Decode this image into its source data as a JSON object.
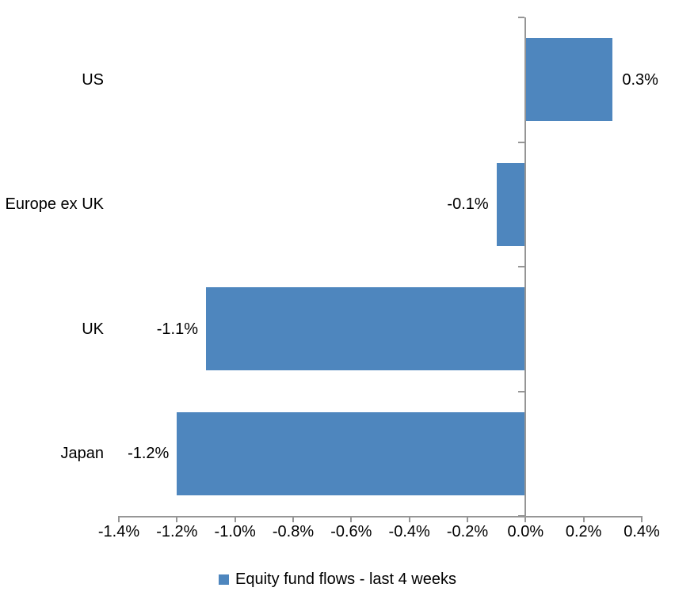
{
  "page": {
    "background": "#FFFFFF"
  },
  "chart_data": {
    "type": "bar",
    "orientation": "horizontal",
    "title": "",
    "xlabel": "",
    "ylabel": "",
    "categories": [
      "US",
      "Europe ex UK",
      "UK",
      "Japan"
    ],
    "series": [
      {
        "name": "Equity fund flows - last 4 weeks",
        "values": [
          0.3,
          -0.1,
          -1.1,
          -1.2
        ],
        "value_labels": [
          "0.3%",
          "-0.1%",
          "-1.1%",
          "-1.2%"
        ],
        "color": "#4E86BE"
      }
    ],
    "xlim": [
      -1.4,
      0.4
    ],
    "x_ticks": [
      -1.4,
      -1.2,
      -1.0,
      -0.8,
      -0.6,
      -0.4,
      -0.2,
      0.0,
      0.2,
      0.4
    ],
    "x_tick_labels": [
      "-1.4%",
      "-1.2%",
      "-1.0%",
      "-0.8%",
      "-0.6%",
      "-0.4%",
      "-0.2%",
      "0.0%",
      "0.2%",
      "0.4%"
    ],
    "grid": false,
    "legend_position": "bottom",
    "axis_color": "#969696",
    "text_color": "#000000",
    "background_color": "#FFFFFF"
  }
}
